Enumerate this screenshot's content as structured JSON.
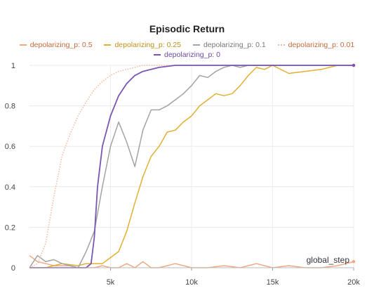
{
  "chart_data": {
    "type": "line",
    "title": "Episodic Return",
    "xlabel": "global_step",
    "ylabel": "",
    "xlim": [
      0,
      20000
    ],
    "ylim": [
      0,
      1
    ],
    "x_ticks": [
      5000,
      10000,
      15000,
      20000
    ],
    "x_tick_labels": [
      "5k",
      "10k",
      "15k",
      "20k"
    ],
    "y_ticks": [
      0,
      0.2,
      0.4,
      0.6,
      0.8,
      1
    ],
    "y_tick_labels": [
      "0",
      "0.2",
      "0.4",
      "0.6",
      "0.8",
      "1"
    ],
    "grid": true,
    "legend_position": "top",
    "series": [
      {
        "name": "depolarizing_p: 0.5",
        "color": "#f0a882",
        "style": "solid",
        "x": [
          0,
          500,
          1000,
          1500,
          2000,
          2500,
          3000,
          3500,
          4000,
          4500,
          5000,
          5500,
          6000,
          6500,
          7000,
          7500,
          8000,
          9000,
          10000,
          11000,
          12000,
          13000,
          14000,
          15000,
          16000,
          17000,
          18000,
          19000,
          20000
        ],
        "y": [
          0.06,
          0.03,
          0.02,
          0.01,
          0.01,
          0.01,
          0.0,
          0.0,
          0.0,
          0.01,
          0.0,
          0.0,
          0.02,
          0.0,
          0.03,
          0.0,
          0.0,
          0.02,
          0.0,
          0.0,
          0.01,
          0.0,
          0.02,
          0.0,
          0.01,
          0.0,
          0.0,
          0.01,
          0.03
        ]
      },
      {
        "name": "depolarizing_p: 0.25",
        "color": "#e0b030",
        "style": "solid",
        "x": [
          0,
          1000,
          2000,
          3000,
          3500,
          4000,
          4500,
          5000,
          5500,
          6000,
          6500,
          7000,
          7500,
          8000,
          8500,
          9000,
          9500,
          10000,
          10500,
          11000,
          11500,
          12000,
          12500,
          13000,
          13500,
          14000,
          14500,
          15000,
          16000,
          17000,
          18000,
          19000,
          20000
        ],
        "y": [
          0.0,
          0.0,
          0.02,
          0.01,
          0.02,
          0.02,
          0.02,
          0.05,
          0.08,
          0.18,
          0.32,
          0.45,
          0.55,
          0.6,
          0.67,
          0.68,
          0.72,
          0.75,
          0.8,
          0.83,
          0.86,
          0.85,
          0.86,
          0.9,
          0.95,
          0.99,
          0.98,
          1.0,
          0.96,
          0.97,
          0.98,
          1.0,
          1.0
        ]
      },
      {
        "name": "depolarizing_p: 0.1",
        "color": "#a3a3a3",
        "style": "solid",
        "x": [
          0,
          500,
          1000,
          1500,
          2000,
          2500,
          3000,
          3500,
          4000,
          4500,
          5000,
          5500,
          6000,
          6500,
          7000,
          7500,
          8000,
          8500,
          9000,
          9500,
          10000,
          10500,
          11000,
          11500,
          12000,
          12500,
          13000,
          13500,
          14000,
          15000,
          16000,
          17000,
          18000,
          19000,
          20000
        ],
        "y": [
          0.0,
          0.06,
          0.03,
          0.04,
          0.02,
          0.01,
          0.0,
          0.08,
          0.18,
          0.4,
          0.6,
          0.72,
          0.62,
          0.5,
          0.68,
          0.78,
          0.78,
          0.8,
          0.83,
          0.86,
          0.9,
          0.95,
          0.94,
          0.97,
          0.99,
          1.0,
          0.99,
          1.0,
          1.0,
          1.0,
          1.0,
          1.0,
          1.0,
          1.0,
          1.0
        ]
      },
      {
        "name": "depolarizing_p: 0.01",
        "color": "#f0b8a0",
        "style": "dotted",
        "x": [
          0,
          500,
          1000,
          1500,
          2000,
          2500,
          3000,
          3500,
          4000,
          4500,
          5000,
          5500,
          6000,
          6500,
          7000,
          7500,
          8000,
          8500,
          9000,
          10000,
          12000,
          14000,
          16000,
          18000,
          20000
        ],
        "y": [
          0.0,
          0.02,
          0.12,
          0.35,
          0.55,
          0.66,
          0.75,
          0.82,
          0.88,
          0.92,
          0.95,
          0.97,
          0.98,
          0.99,
          1.0,
          1.0,
          1.0,
          1.0,
          1.0,
          1.0,
          1.0,
          1.0,
          1.0,
          1.0,
          1.0
        ]
      },
      {
        "name": "depolarizing_p: 0",
        "color": "#7b55b0",
        "style": "solid",
        "x": [
          0,
          1000,
          2000,
          3000,
          3500,
          3800,
          4000,
          4200,
          4500,
          5000,
          5500,
          6000,
          6500,
          7000,
          7500,
          8000,
          9000,
          10000,
          12000,
          14000,
          16000,
          18000,
          20000
        ],
        "y": [
          0.0,
          0.0,
          0.0,
          0.0,
          0.0,
          0.02,
          0.15,
          0.4,
          0.6,
          0.75,
          0.85,
          0.91,
          0.95,
          0.97,
          0.98,
          0.99,
          1.0,
          1.0,
          1.0,
          1.0,
          1.0,
          1.0,
          1.0
        ]
      }
    ]
  }
}
